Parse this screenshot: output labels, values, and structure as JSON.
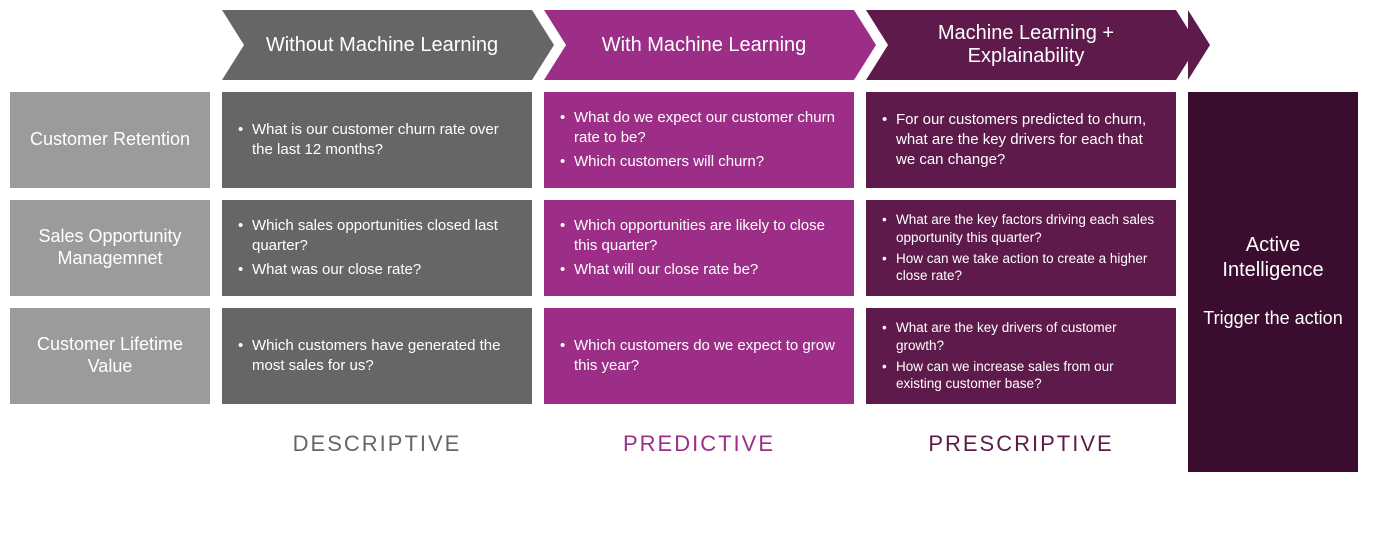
{
  "colors": {
    "row_label_bg": "#9b9b9b",
    "col1_header_bg": "#666666",
    "col1_cell_bg": "#666666",
    "col2_header_bg": "#9c2e87",
    "col2_cell_bg": "#9c2e87",
    "col3_header_bg": "#5e1a4b",
    "col3_cell_bg": "#5e1a4b",
    "final_bg": "#3a0d2e",
    "footer1_color": "#666666",
    "footer2_color": "#9c2e87",
    "footer3_color": "#5e1a4b",
    "text_white": "#ffffff"
  },
  "headers": {
    "col1": "Without Machine Learning",
    "col2": "With Machine Learning",
    "col3": "Machine Learning + Explainability"
  },
  "row_labels": {
    "r1": "Customer Retention",
    "r2": "Sales Opportunity Managemnet",
    "r3": "Customer Lifetime Value"
  },
  "cells": {
    "r1c1": [
      "What is our customer churn rate over the last 12 months?"
    ],
    "r1c2": [
      "What do we expect our customer churn rate to be?",
      "Which customers will churn?"
    ],
    "r1c3": [
      "For our customers predicted to churn, what are the key drivers for each that we can change?"
    ],
    "r2c1": [
      "Which sales opportunities closed last quarter?",
      "What was our close rate?"
    ],
    "r2c2": [
      "Which opportunities are likely to close this quarter?",
      "What will our close rate be?"
    ],
    "r2c3": [
      "What are the key factors driving each sales opportunity this quarter?",
      "How can we take action to create a higher close rate?"
    ],
    "r3c1": [
      "Which customers have generated the most sales for us?"
    ],
    "r3c2": [
      "Which customers do we expect to grow this year?"
    ],
    "r3c3": [
      "What are the key drivers of customer growth?",
      "How can we increase sales from our existing customer base?"
    ]
  },
  "footers": {
    "col1": "DESCRIPTIVE",
    "col2": "PREDICTIVE",
    "col3": "PRESCRIPTIVE"
  },
  "final": {
    "title": "Active Intelligence",
    "sub": "Trigger the action"
  }
}
